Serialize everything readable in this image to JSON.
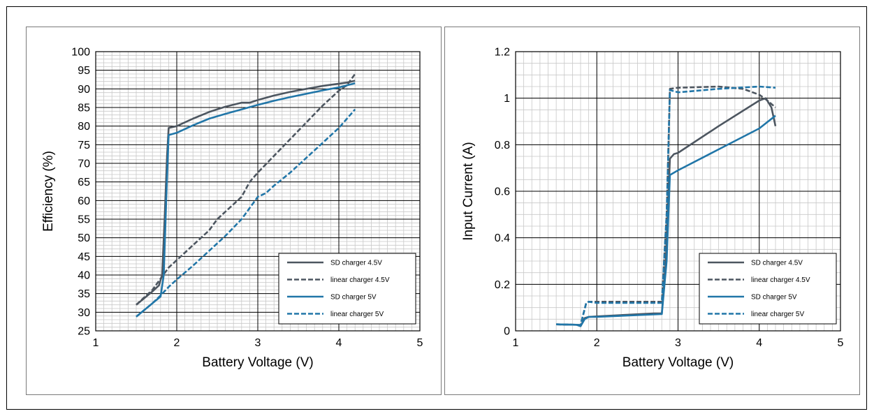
{
  "chart_data": [
    {
      "type": "line",
      "title": "",
      "xlabel": "Battery Voltage (V)",
      "ylabel": "Efficiency (%)",
      "xlim": [
        1,
        5
      ],
      "ylim": [
        25,
        100
      ],
      "x_ticks": [
        1,
        2,
        3,
        4,
        5
      ],
      "y_ticks": [
        25,
        30,
        35,
        40,
        45,
        50,
        55,
        60,
        65,
        70,
        75,
        80,
        85,
        90,
        95,
        100
      ],
      "x_minor_step": 0.1,
      "y_minor_step": 1,
      "major_grid": true,
      "minor_grid": true,
      "legend_position": "bottom-right",
      "series": [
        {
          "name": "SD charger 4.5V",
          "color": "#4d5660",
          "dash": "solid",
          "points": [
            [
              1.5,
              32
            ],
            [
              1.6,
              33.8
            ],
            [
              1.7,
              35.6
            ],
            [
              1.78,
              37.2
            ],
            [
              1.82,
              40
            ],
            [
              1.85,
              55
            ],
            [
              1.88,
              72
            ],
            [
              1.9,
              79.5
            ],
            [
              2.0,
              80
            ],
            [
              2.2,
              82
            ],
            [
              2.4,
              83.8
            ],
            [
              2.6,
              85.2
            ],
            [
              2.8,
              86.3
            ],
            [
              2.9,
              86.3
            ],
            [
              3.0,
              87
            ],
            [
              3.2,
              88.2
            ],
            [
              3.4,
              89.2
            ],
            [
              3.6,
              90
            ],
            [
              3.8,
              90.8
            ],
            [
              4.0,
              91.4
            ],
            [
              4.1,
              91.7
            ],
            [
              4.2,
              92.2
            ]
          ]
        },
        {
          "name": "linear charger 4.5V",
          "color": "#4d5660",
          "dash": "dashed",
          "points": [
            [
              1.5,
              32
            ],
            [
              1.6,
              34
            ],
            [
              1.7,
              36
            ],
            [
              1.8,
              39
            ],
            [
              1.9,
              42
            ],
            [
              2.0,
              44
            ],
            [
              2.2,
              48
            ],
            [
              2.4,
              52
            ],
            [
              2.5,
              55
            ],
            [
              2.6,
              57
            ],
            [
              2.8,
              61
            ],
            [
              2.9,
              65
            ],
            [
              3.0,
              67.5
            ],
            [
              3.2,
              72
            ],
            [
              3.4,
              76.5
            ],
            [
              3.6,
              81
            ],
            [
              3.8,
              85.5
            ],
            [
              4.0,
              89.5
            ],
            [
              4.1,
              91
            ],
            [
              4.2,
              94
            ]
          ]
        },
        {
          "name": "SD charger 5V",
          "color": "#2176a8",
          "dash": "solid",
          "points": [
            [
              1.5,
              28.8
            ],
            [
              1.6,
              30.6
            ],
            [
              1.7,
              32.4
            ],
            [
              1.8,
              34.2
            ],
            [
              1.84,
              40
            ],
            [
              1.87,
              60
            ],
            [
              1.9,
              77.6
            ],
            [
              2.0,
              78.2
            ],
            [
              2.2,
              80.2
            ],
            [
              2.4,
              82
            ],
            [
              2.6,
              83.3
            ],
            [
              2.8,
              84.5
            ],
            [
              3.0,
              85.7
            ],
            [
              3.2,
              86.8
            ],
            [
              3.4,
              87.8
            ],
            [
              3.6,
              88.7
            ],
            [
              3.8,
              89.6
            ],
            [
              4.0,
              90.4
            ],
            [
              4.2,
              91.5
            ]
          ]
        },
        {
          "name": "linear charger 5V",
          "color": "#2176a8",
          "dash": "dashed",
          "points": [
            [
              1.5,
              28.8
            ],
            [
              1.6,
              30.6
            ],
            [
              1.7,
              32.4
            ],
            [
              1.8,
              34.5
            ],
            [
              1.9,
              36.8
            ],
            [
              2.0,
              38.8
            ],
            [
              2.2,
              42.5
            ],
            [
              2.4,
              46.5
            ],
            [
              2.6,
              50.5
            ],
            [
              2.8,
              55
            ],
            [
              2.9,
              58
            ],
            [
              3.0,
              61
            ],
            [
              3.1,
              62
            ],
            [
              3.2,
              64
            ],
            [
              3.4,
              67.5
            ],
            [
              3.6,
              71.5
            ],
            [
              3.8,
              75.5
            ],
            [
              4.0,
              79.5
            ],
            [
              4.2,
              84.5
            ]
          ]
        }
      ]
    },
    {
      "type": "line",
      "title": "",
      "xlabel": "Battery Voltage (V)",
      "ylabel": "Input Current (A)",
      "xlim": [
        1,
        5
      ],
      "ylim": [
        0,
        1.2
      ],
      "x_ticks": [
        1,
        2,
        3,
        4,
        5
      ],
      "y_ticks": [
        0,
        0.2,
        0.4,
        0.6,
        0.8,
        1,
        1.2
      ],
      "x_minor_step": 0.1,
      "y_minor_step": 0.05,
      "major_grid": true,
      "minor_grid": true,
      "legend_position": "bottom-right",
      "series": [
        {
          "name": "SD charger 4.5V",
          "color": "#4d5660",
          "dash": "solid",
          "points": [
            [
              1.5,
              0.028
            ],
            [
              1.75,
              0.026
            ],
            [
              1.8,
              0.02
            ],
            [
              1.85,
              0.055
            ],
            [
              1.9,
              0.06
            ],
            [
              2.0,
              0.062
            ],
            [
              2.7,
              0.075
            ],
            [
              2.8,
              0.075
            ],
            [
              2.85,
              0.3
            ],
            [
              2.9,
              0.74
            ],
            [
              2.95,
              0.76
            ],
            [
              3.0,
              0.765
            ],
            [
              3.5,
              0.88
            ],
            [
              4.0,
              0.99
            ],
            [
              4.08,
              1.0
            ],
            [
              4.15,
              0.96
            ],
            [
              4.2,
              0.88
            ]
          ]
        },
        {
          "name": "linear charger 4.5V",
          "color": "#4d5660",
          "dash": "dashed",
          "points": [
            [
              1.5,
              0.028
            ],
            [
              1.75,
              0.026
            ],
            [
              1.8,
              0.025
            ],
            [
              1.87,
              0.12
            ],
            [
              1.9,
              0.125
            ],
            [
              2.0,
              0.125
            ],
            [
              2.8,
              0.125
            ],
            [
              2.86,
              0.5
            ],
            [
              2.9,
              1.04
            ],
            [
              3.0,
              1.045
            ],
            [
              3.5,
              1.05
            ],
            [
              3.8,
              1.04
            ],
            [
              4.0,
              1.015
            ],
            [
              4.1,
              0.99
            ],
            [
              4.2,
              0.96
            ]
          ]
        },
        {
          "name": "SD charger 5V",
          "color": "#2176a8",
          "dash": "solid",
          "points": [
            [
              1.5,
              0.028
            ],
            [
              1.75,
              0.026
            ],
            [
              1.8,
              0.02
            ],
            [
              1.85,
              0.05
            ],
            [
              1.9,
              0.06
            ],
            [
              2.0,
              0.06
            ],
            [
              2.8,
              0.072
            ],
            [
              2.86,
              0.3
            ],
            [
              2.9,
              0.67
            ],
            [
              3.0,
              0.69
            ],
            [
              3.5,
              0.78
            ],
            [
              4.0,
              0.87
            ],
            [
              4.2,
              0.925
            ]
          ]
        },
        {
          "name": "linear charger 5V",
          "color": "#2176a8",
          "dash": "dashed",
          "points": [
            [
              1.5,
              0.028
            ],
            [
              1.75,
              0.026
            ],
            [
              1.8,
              0.025
            ],
            [
              1.87,
              0.12
            ],
            [
              1.9,
              0.125
            ],
            [
              2.0,
              0.12
            ],
            [
              2.8,
              0.12
            ],
            [
              2.86,
              0.5
            ],
            [
              2.9,
              1.035
            ],
            [
              3.0,
              1.025
            ],
            [
              3.5,
              1.04
            ],
            [
              4.0,
              1.05
            ],
            [
              4.2,
              1.045
            ]
          ]
        }
      ]
    }
  ]
}
